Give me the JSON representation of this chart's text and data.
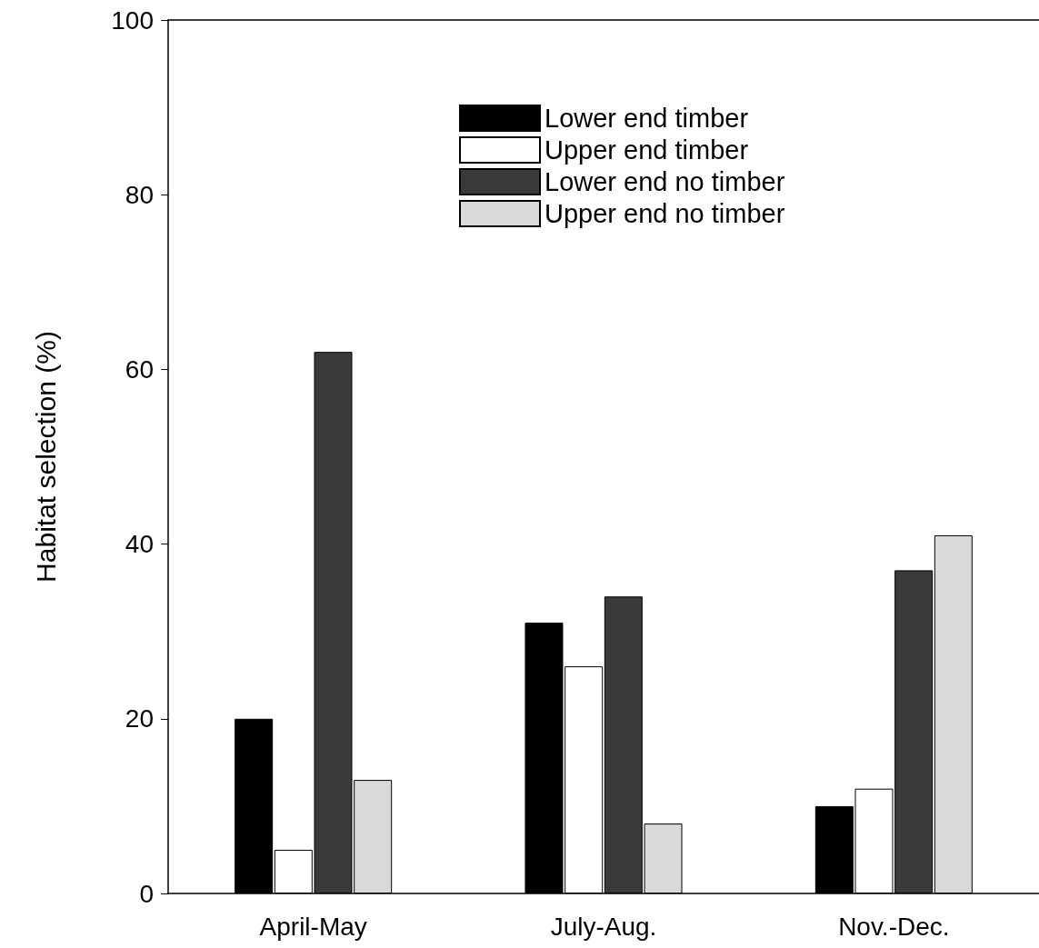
{
  "chart_data": {
    "type": "bar",
    "ylabel": "Habitat selection (%)",
    "categories": [
      "April-May",
      "July-Aug.",
      "Nov.-Dec."
    ],
    "series": [
      {
        "name": "Lower end timber",
        "color": "#000000",
        "values": [
          20,
          31,
          10
        ]
      },
      {
        "name": "Upper end timber",
        "color": "#ffffff",
        "values": [
          5,
          26,
          12
        ]
      },
      {
        "name": "Lower end no timber",
        "color": "#3a3a3a",
        "values": [
          62,
          34,
          37
        ]
      },
      {
        "name": "Upper end no timber",
        "color": "#d9d9d9",
        "values": [
          13,
          8,
          41
        ]
      }
    ],
    "ylim": [
      0,
      100
    ],
    "yticks": [
      0,
      20,
      40,
      60,
      80,
      100
    ],
    "grid": false,
    "legend": "top right"
  }
}
